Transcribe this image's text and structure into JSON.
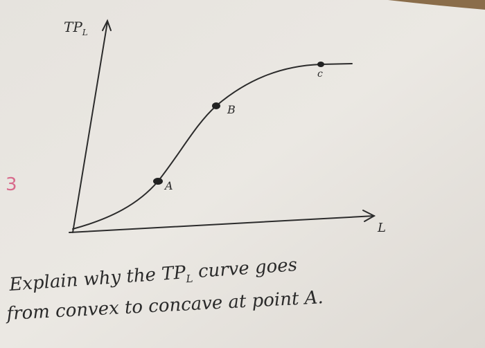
{
  "graph": {
    "y_label": "TP",
    "y_label_sub": "L",
    "x_label": "L",
    "points": [
      "A",
      "B",
      "c"
    ]
  },
  "margin_mark": "3",
  "question": {
    "line1_start": "Explain why the TP",
    "line1_sub": "L",
    "line1_end": " curve goes",
    "line2": "from convex to concave at point A."
  }
}
